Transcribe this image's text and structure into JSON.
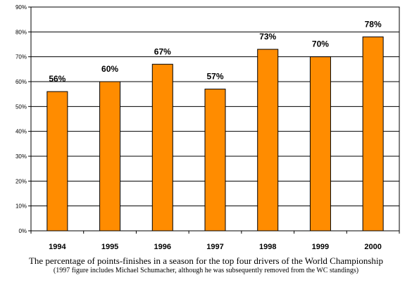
{
  "chart_data": {
    "type": "bar",
    "categories": [
      "1994",
      "1995",
      "1996",
      "1997",
      "1998",
      "1999",
      "2000"
    ],
    "values": [
      56,
      60,
      67,
      57,
      73,
      70,
      78
    ],
    "data_labels": [
      "56%",
      "60%",
      "67%",
      "57%",
      "73%",
      "70%",
      "78%"
    ],
    "ylim": [
      0,
      90
    ],
    "y_ticks": [
      0,
      10,
      20,
      30,
      40,
      50,
      60,
      70,
      80,
      90
    ],
    "y_tick_labels": [
      "0%",
      "10%",
      "20%",
      "30%",
      "40%",
      "50%",
      "60%",
      "70%",
      "80%",
      "90%"
    ],
    "grid": true,
    "legend": "none",
    "bar_color": "#FF8C00",
    "bar_edge_color": "#000000",
    "title": "",
    "xlabel": "",
    "ylabel": ""
  },
  "caption": {
    "main": "The percentage of points-finishes in a season for the top four drivers of the World Championship",
    "note": "(1997 figure includes Michael Schumacher, although he was subsequently removed from the WC standings)"
  }
}
